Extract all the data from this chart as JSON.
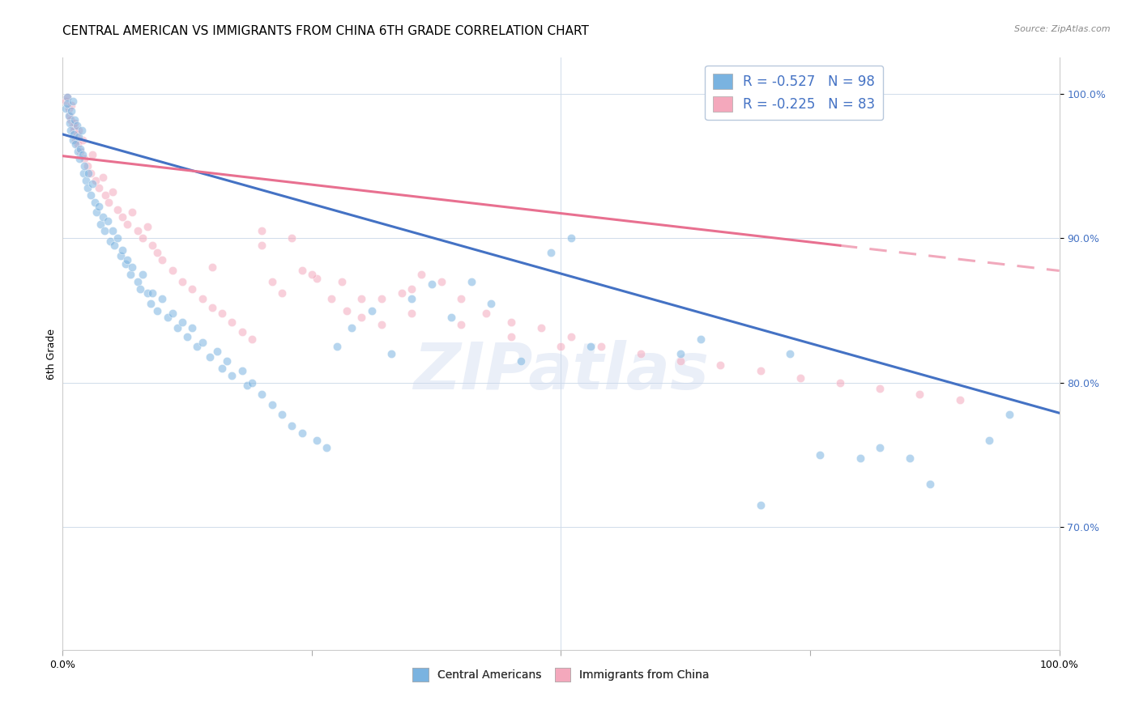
{
  "title": "CENTRAL AMERICAN VS IMMIGRANTS FROM CHINA 6TH GRADE CORRELATION CHART",
  "source_text": "Source: ZipAtlas.com",
  "ylabel": "6th Grade",
  "ytick_labels": [
    "70.0%",
    "80.0%",
    "90.0%",
    "100.0%"
  ],
  "ytick_values": [
    0.7,
    0.8,
    0.9,
    1.0
  ],
  "xlim": [
    0.0,
    1.0
  ],
  "ylim": [
    0.615,
    1.025
  ],
  "watermark": "ZIPatlas",
  "blue_scatter_x": [
    0.003,
    0.005,
    0.005,
    0.006,
    0.007,
    0.008,
    0.009,
    0.01,
    0.01,
    0.011,
    0.012,
    0.013,
    0.014,
    0.015,
    0.016,
    0.017,
    0.018,
    0.019,
    0.02,
    0.021,
    0.022,
    0.023,
    0.025,
    0.026,
    0.028,
    0.03,
    0.032,
    0.034,
    0.036,
    0.038,
    0.04,
    0.042,
    0.045,
    0.048,
    0.05,
    0.052,
    0.055,
    0.058,
    0.06,
    0.063,
    0.065,
    0.068,
    0.07,
    0.075,
    0.078,
    0.08,
    0.085,
    0.088,
    0.09,
    0.095,
    0.1,
    0.105,
    0.11,
    0.115,
    0.12,
    0.125,
    0.13,
    0.135,
    0.14,
    0.148,
    0.155,
    0.16,
    0.165,
    0.17,
    0.18,
    0.185,
    0.19,
    0.2,
    0.21,
    0.22,
    0.23,
    0.24,
    0.255,
    0.265,
    0.275,
    0.29,
    0.31,
    0.33,
    0.35,
    0.37,
    0.39,
    0.41,
    0.43,
    0.46,
    0.49,
    0.51,
    0.53,
    0.62,
    0.64,
    0.7,
    0.73,
    0.76,
    0.8,
    0.82,
    0.85,
    0.87,
    0.93,
    0.95
  ],
  "blue_scatter_y": [
    0.99,
    0.998,
    0.993,
    0.985,
    0.98,
    0.975,
    0.988,
    0.968,
    0.995,
    0.972,
    0.982,
    0.965,
    0.978,
    0.96,
    0.97,
    0.955,
    0.962,
    0.975,
    0.958,
    0.945,
    0.95,
    0.94,
    0.935,
    0.945,
    0.93,
    0.938,
    0.925,
    0.918,
    0.922,
    0.91,
    0.915,
    0.905,
    0.912,
    0.898,
    0.905,
    0.895,
    0.9,
    0.888,
    0.892,
    0.882,
    0.885,
    0.875,
    0.88,
    0.87,
    0.865,
    0.875,
    0.862,
    0.855,
    0.862,
    0.85,
    0.858,
    0.845,
    0.848,
    0.838,
    0.842,
    0.832,
    0.838,
    0.825,
    0.828,
    0.818,
    0.822,
    0.81,
    0.815,
    0.805,
    0.808,
    0.798,
    0.8,
    0.792,
    0.785,
    0.778,
    0.77,
    0.765,
    0.76,
    0.755,
    0.825,
    0.838,
    0.85,
    0.82,
    0.858,
    0.868,
    0.845,
    0.87,
    0.855,
    0.815,
    0.89,
    0.9,
    0.825,
    0.82,
    0.83,
    0.715,
    0.82,
    0.75,
    0.748,
    0.755,
    0.748,
    0.73,
    0.76,
    0.778
  ],
  "pink_scatter_x": [
    0.003,
    0.005,
    0.006,
    0.007,
    0.008,
    0.009,
    0.01,
    0.011,
    0.012,
    0.013,
    0.014,
    0.015,
    0.016,
    0.018,
    0.02,
    0.022,
    0.025,
    0.028,
    0.03,
    0.033,
    0.036,
    0.04,
    0.043,
    0.046,
    0.05,
    0.055,
    0.06,
    0.065,
    0.07,
    0.075,
    0.08,
    0.085,
    0.09,
    0.095,
    0.1,
    0.11,
    0.12,
    0.13,
    0.14,
    0.15,
    0.16,
    0.17,
    0.18,
    0.19,
    0.2,
    0.21,
    0.22,
    0.23,
    0.24,
    0.255,
    0.27,
    0.285,
    0.3,
    0.32,
    0.34,
    0.36,
    0.38,
    0.4,
    0.425,
    0.45,
    0.48,
    0.51,
    0.54,
    0.58,
    0.62,
    0.66,
    0.7,
    0.74,
    0.78,
    0.82,
    0.86,
    0.9,
    0.2,
    0.15,
    0.25,
    0.3,
    0.35,
    0.4,
    0.45,
    0.5,
    0.35,
    0.28,
    0.32
  ],
  "pink_scatter_y": [
    0.995,
    0.998,
    0.99,
    0.985,
    0.982,
    0.992,
    0.978,
    0.975,
    0.98,
    0.968,
    0.972,
    0.965,
    0.975,
    0.96,
    0.968,
    0.955,
    0.95,
    0.945,
    0.958,
    0.94,
    0.935,
    0.942,
    0.93,
    0.925,
    0.932,
    0.92,
    0.915,
    0.91,
    0.918,
    0.905,
    0.9,
    0.908,
    0.895,
    0.89,
    0.885,
    0.878,
    0.87,
    0.865,
    0.858,
    0.852,
    0.848,
    0.842,
    0.835,
    0.83,
    0.895,
    0.87,
    0.862,
    0.9,
    0.878,
    0.872,
    0.858,
    0.85,
    0.845,
    0.84,
    0.862,
    0.875,
    0.87,
    0.858,
    0.848,
    0.842,
    0.838,
    0.832,
    0.825,
    0.82,
    0.815,
    0.812,
    0.808,
    0.803,
    0.8,
    0.796,
    0.792,
    0.788,
    0.905,
    0.88,
    0.875,
    0.858,
    0.848,
    0.84,
    0.832,
    0.825,
    0.865,
    0.87,
    0.858
  ],
  "blue_line_x": [
    0.0,
    1.0
  ],
  "blue_line_y": [
    0.972,
    0.779
  ],
  "pink_line_x": [
    0.0,
    0.78
  ],
  "pink_line_y": [
    0.957,
    0.895
  ],
  "blue_color": "#7ab3e0",
  "pink_color": "#f4a8bc",
  "blue_line_color": "#4472c4",
  "pink_line_color": "#e87090",
  "grid_color": "#d0dcea",
  "background_color": "#ffffff",
  "title_fontsize": 11,
  "axis_label_fontsize": 9,
  "tick_fontsize": 9,
  "marker_size": 55,
  "marker_alpha": 0.55,
  "line_width": 2.2
}
